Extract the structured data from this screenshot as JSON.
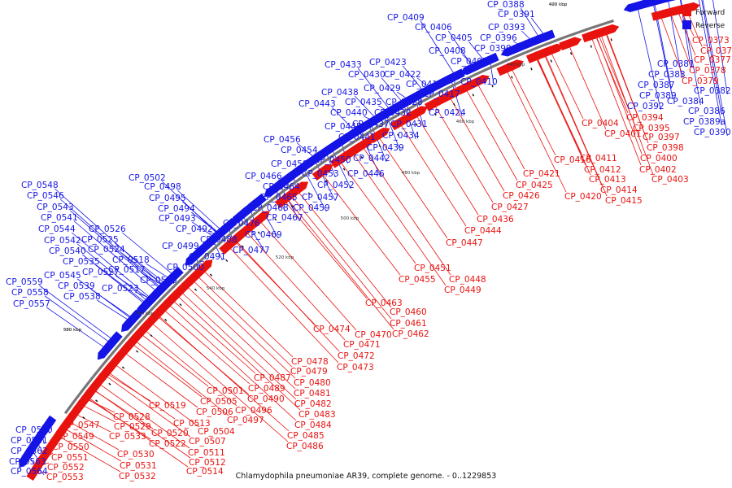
{
  "caption": "Chlamydophila pneumoniae AR39, complete genome. - 0..1229853",
  "legend": [
    {
      "label": "Forward",
      "color": "#e8120f"
    },
    {
      "label": "Reverse",
      "color": "#1414e6"
    }
  ],
  "colors": {
    "forward": "#e8120f",
    "reverse": "#1414e6",
    "backbone": "#777777"
  },
  "ticks": [
    "380 kbp",
    "400 kbp",
    "420 kbp",
    "440 kbp",
    "460 kbp",
    "480 kbp",
    "500 kbp",
    "520 kbp",
    "540 kbp",
    "560 kbp",
    "580 kbp"
  ],
  "reverse_genes": [
    "CP_0388",
    "CP_0391",
    "CP_0393",
    "CP_0396",
    "CP_0399",
    "CP_0405",
    "CP_0406",
    "CP_0408",
    "CP_0409",
    "CP_0407",
    "CP_0410",
    "CP_0417",
    "CP_0419",
    "CP_0422",
    "CP_0423",
    "CP_0424",
    "CP_0428",
    "CP_0429",
    "CP_0430",
    "CP_0431",
    "CP_0432",
    "CP_0433",
    "CP_0434",
    "CP_0435",
    "CP_0437",
    "CP_0438",
    "CP_0439",
    "CP_0440",
    "CP_0441",
    "CP_0442",
    "CP_0443",
    "CP_0445",
    "CP_0446",
    "CP_0450",
    "CP_0452",
    "CP_0453",
    "CP_0454",
    "CP_0456",
    "CP_0457",
    "CP_0458",
    "CP_0459",
    "CP_0464",
    "CP_0465",
    "CP_0466",
    "CP_0467",
    "CP_0468",
    "CP_0469",
    "CP_0476",
    "CP_0477",
    "CP_0488",
    "CP_0491",
    "CP_0492",
    "CP_0493",
    "CP_0494",
    "CP_0495",
    "CP_0498",
    "CP_0499",
    "CP_0500",
    "CP_0502",
    "CP_0510",
    "CP_0517",
    "CP_0518",
    "CP_0523",
    "CP_0524",
    "CP_0525",
    "CP_0526",
    "CP_0527",
    "CP_0535",
    "CP_0538",
    "CP_0539",
    "CP_0540",
    "CP_0541",
    "CP_0542",
    "CP_0543",
    "CP_0544",
    "CP_0545",
    "CP_0546",
    "CP_0548",
    "CP_0557",
    "CP_0558",
    "CP_0559",
    "CP_0560",
    "CP_0561",
    "CP_0562",
    "CP_0563",
    "CP_0564",
    "CP_0381",
    "CP_0383",
    "CP_0384",
    "CP_0387",
    "CP_0389",
    "CP_0392",
    "CP_0382",
    "CP_0386",
    "CP_0389a",
    "CP_0390"
  ],
  "forward_genes": [
    "CP_0373",
    "CP_0375",
    "CP_0377",
    "CP_0378",
    "CP_0379",
    "CP_0394",
    "CP_0395",
    "CP_0397",
    "CP_0398",
    "CP_0400",
    "CP_0401",
    "CP_0402",
    "CP_0403",
    "CP_0404",
    "CP_0411",
    "CP_0412",
    "CP_0413",
    "CP_0414",
    "CP_0415",
    "CP_0416",
    "CP_0420",
    "CP_0421",
    "CP_0425",
    "CP_0426",
    "CP_0427",
    "CP_0436",
    "CP_0444",
    "CP_0447",
    "CP_0448",
    "CP_0449",
    "CP_0451",
    "CP_0455",
    "CP_0460",
    "CP_0461",
    "CP_0462",
    "CP_0463",
    "CP_0470",
    "CP_0471",
    "CP_0472",
    "CP_0473",
    "CP_0474",
    "CP_0478",
    "CP_0479",
    "CP_0480",
    "CP_0481",
    "CP_0482",
    "CP_0483",
    "CP_0484",
    "CP_0485",
    "CP_0486",
    "CP_0487",
    "CP_0489",
    "CP_0490",
    "CP_0496",
    "CP_0497",
    "CP_0501",
    "CP_0504",
    "CP_0505",
    "CP_0506",
    "CP_0507",
    "CP_0511",
    "CP_0512",
    "CP_0513",
    "CP_0514",
    "CP_0519",
    "CP_0520",
    "CP_0522",
    "CP_0528",
    "CP_0529",
    "CP_0530",
    "CP_0531",
    "CP_0532",
    "CP_0533",
    "CP_0547",
    "CP_0549",
    "CP_0550",
    "CP_0551",
    "CP_0552",
    "CP_0553"
  ]
}
